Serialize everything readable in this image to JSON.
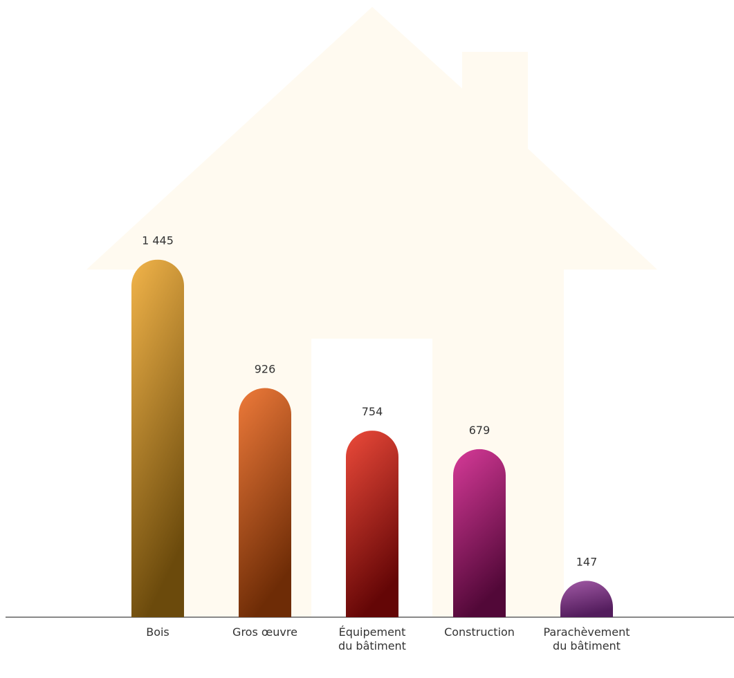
{
  "chart_data": {
    "type": "bar",
    "categories": [
      "Bois",
      "Gros œuvre",
      "Équipement\ndu bâtiment",
      "Construction",
      "Parachèvement\ndu bâtiment"
    ],
    "values": [
      1445,
      926,
      754,
      679,
      147
    ],
    "value_labels": [
      "1 445",
      "926",
      "754",
      "679",
      "147"
    ],
    "colors": [
      [
        "#f2b44a",
        "#6b4a0c"
      ],
      [
        "#ee7a3a",
        "#6e2c06"
      ],
      [
        "#ec4a3a",
        "#640606"
      ],
      [
        "#d63a98",
        "#520838"
      ],
      [
        "#a25aa6",
        "#521c5c"
      ]
    ],
    "ylim": [
      0,
      1500
    ]
  }
}
